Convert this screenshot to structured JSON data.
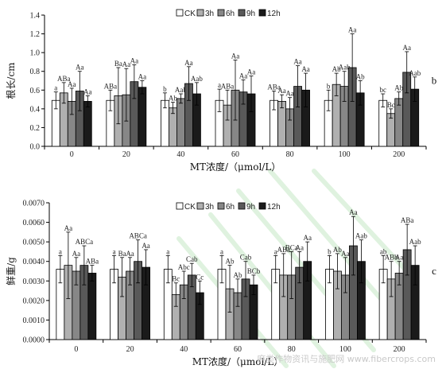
{
  "chart_data": [
    {
      "type": "bar",
      "panel_label": "b",
      "categories": [
        "0",
        "20",
        "40",
        "60",
        "80",
        "100",
        "200"
      ],
      "xlabel": "MT浓度/（μmol/L）",
      "ylabel": "根长/cm",
      "ylim": [
        0,
        1.4
      ],
      "yticks": [
        "0.0",
        "0.2",
        "0.4",
        "0.6",
        "0.8",
        "1.0",
        "1.2",
        "1.4"
      ],
      "legend_position": "top-center",
      "series": [
        {
          "name": "CK",
          "color": "#ffffff",
          "values": [
            0.49,
            0.49,
            0.49,
            0.49,
            0.49,
            0.49,
            0.49
          ],
          "errors": [
            0.09,
            0.11,
            0.08,
            0.12,
            0.1,
            0.11,
            0.07
          ],
          "labels": [
            "a",
            "ABa",
            "b",
            "a",
            "ABa",
            "b",
            "bc"
          ]
        },
        {
          "name": "3h",
          "color": "#b0b0b0",
          "values": [
            0.57,
            0.54,
            0.41,
            0.44,
            0.48,
            0.66,
            0.35
          ],
          "errors": [
            0.11,
            0.3,
            0.06,
            0.16,
            0.07,
            0.12,
            0.05
          ],
          "labels": [
            "ABa",
            "Ba",
            "Ab",
            "ABa",
            "Aa",
            "Ab",
            "Bc"
          ]
        },
        {
          "name": "6h",
          "color": "#878787",
          "values": [
            0.48,
            0.55,
            0.51,
            0.6,
            0.4,
            0.64,
            0.51
          ],
          "errors": [
            0.14,
            0.28,
            0.05,
            0.32,
            0.12,
            0.16,
            0.07
          ],
          "labels": [
            "Aa",
            "Aa",
            "Aab",
            "Aa",
            "Aa",
            "Aab",
            "Ab"
          ]
        },
        {
          "name": "9h",
          "color": "#595959",
          "values": [
            0.59,
            0.69,
            0.67,
            0.58,
            0.64,
            0.84,
            0.79
          ],
          "errors": [
            0.21,
            0.18,
            0.18,
            0.13,
            0.22,
            0.36,
            0.22
          ],
          "labels": [
            "Aa",
            "Aa",
            "Aa",
            "Aa",
            "Aa",
            "Aa",
            "Aa"
          ]
        },
        {
          "name": "12h",
          "color": "#1a1a1a",
          "values": [
            0.48,
            0.63,
            0.56,
            0.56,
            0.6,
            0.57,
            0.61
          ],
          "errors": [
            0.06,
            0.07,
            0.12,
            0.19,
            0.18,
            0.13,
            0.13
          ],
          "labels": [
            "Aa",
            "Aa",
            "Aab",
            "Aa",
            "Aa",
            "Ab",
            "Aab"
          ]
        }
      ]
    },
    {
      "type": "bar",
      "panel_label": "c",
      "categories": [
        "0",
        "20",
        "40",
        "60",
        "80",
        "100",
        "200"
      ],
      "xlabel": "MT浓度/（μmol/L）",
      "ylabel": "鲜重/g",
      "ylim": [
        0,
        0.007
      ],
      "yticks": [
        "0.0000",
        "0.0010",
        "0.0020",
        "0.0030",
        "0.0040",
        "0.0050",
        "0.0060",
        "0.0070"
      ],
      "legend_position": "top-center",
      "series": [
        {
          "name": "CK",
          "color": "#ffffff",
          "values": [
            0.0036,
            0.0036,
            0.0036,
            0.0036,
            0.0036,
            0.0036,
            0.0036
          ],
          "errors": [
            0.0007,
            0.0007,
            0.0007,
            0.0007,
            0.0007,
            0.0007,
            0.0007
          ],
          "labels": [
            "a",
            "a",
            "a",
            "a",
            "a",
            "b",
            "ab"
          ]
        },
        {
          "name": "3h",
          "color": "#b0b0b0",
          "values": [
            0.0038,
            0.0032,
            0.0023,
            0.0026,
            0.0033,
            0.0035,
            0.0031
          ],
          "errors": [
            0.0017,
            0.001,
            0.0006,
            0.0012,
            0.0011,
            0.0009,
            0.0009
          ],
          "labels": [
            "Aa",
            "Ba",
            "Bc",
            "Ab",
            "ABa",
            "Ab",
            "ABb"
          ]
        },
        {
          "name": "6h",
          "color": "#878787",
          "values": [
            0.0035,
            0.0035,
            0.0028,
            0.0024,
            0.0033,
            0.0033,
            0.0034
          ],
          "errors": [
            0.0007,
            0.0007,
            0.0007,
            0.0007,
            0.0012,
            0.0009,
            0.0006
          ],
          "labels": [
            "Aa",
            "Aa",
            "Abc",
            "Ab",
            "BCa",
            "Aa",
            "Aa"
          ]
        },
        {
          "name": "9h",
          "color": "#595959",
          "values": [
            0.0038,
            0.004,
            0.0033,
            0.0031,
            0.0037,
            0.0048,
            0.0046
          ],
          "errors": [
            0.001,
            0.0011,
            0.0006,
            0.0009,
            0.0008,
            0.0015,
            0.0013
          ],
          "labels": [
            "ABCa",
            "ABCa",
            "Cab",
            "Cab",
            "Aa",
            "Aa",
            "ABa"
          ]
        },
        {
          "name": "12h",
          "color": "#1a1a1a",
          "values": [
            0.0034,
            0.0037,
            0.0024,
            0.0028,
            0.004,
            0.004,
            0.0038
          ],
          "errors": [
            0.0004,
            0.0009,
            0.0006,
            0.0005,
            0.001,
            0.0011,
            0.001
          ],
          "labels": [
            "ABa",
            "Aa",
            "Cc",
            "BCb",
            "Aa",
            "Aab",
            "Aab"
          ]
        }
      ]
    }
  ],
  "watermark": "麻类作物资讯与施肥网 www.fibercrops.com"
}
